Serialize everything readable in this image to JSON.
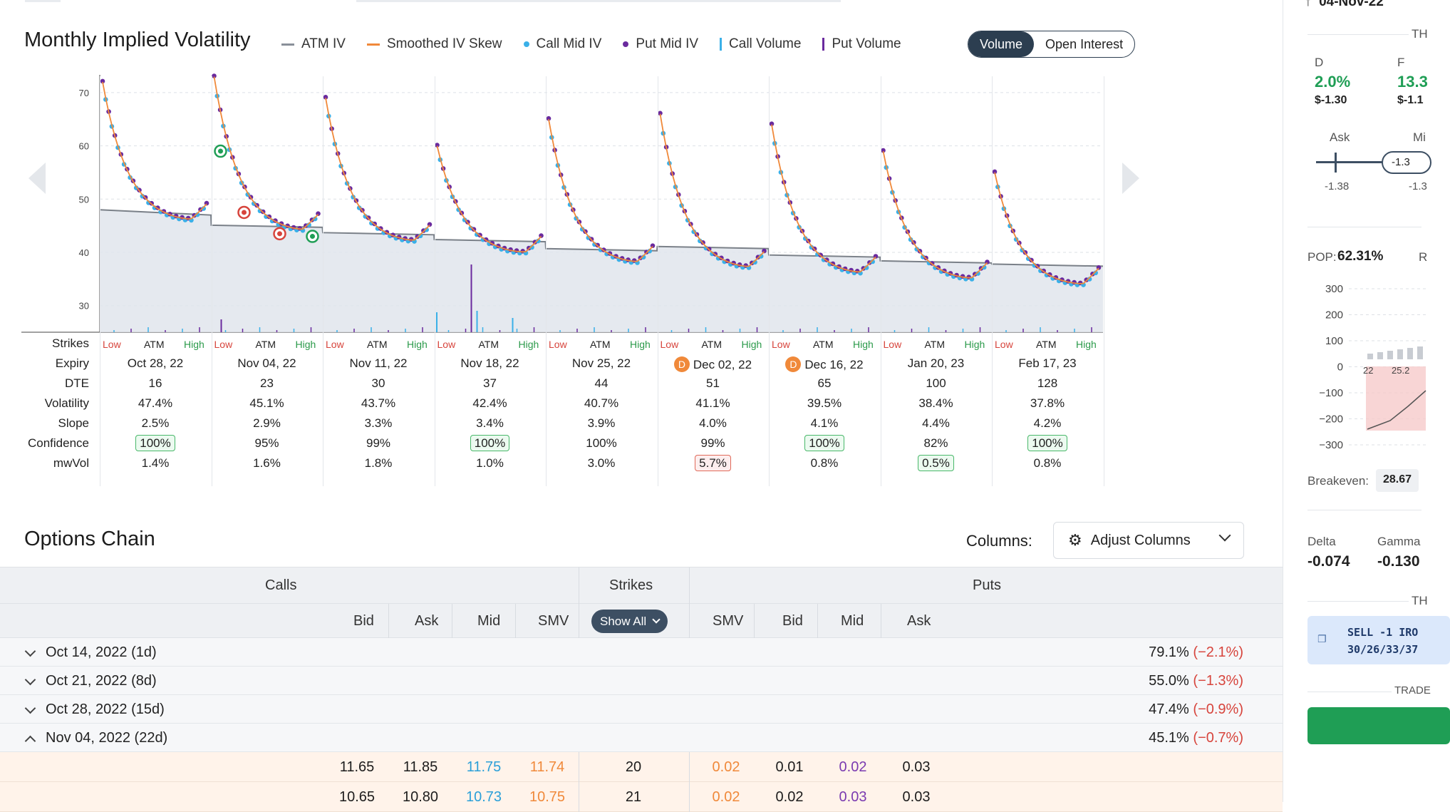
{
  "chart": {
    "title": "Monthly Implied Volatility",
    "legend": [
      {
        "label": "ATM IV",
        "symbol": "line",
        "color": "#8a9099"
      },
      {
        "label": "Smoothed IV Skew",
        "symbol": "line",
        "color": "#f0893a"
      },
      {
        "label": "Call Mid IV",
        "symbol": "dot",
        "color": "#3ab0e8"
      },
      {
        "label": "Put Mid IV",
        "symbol": "dot",
        "color": "#6a2a9e"
      },
      {
        "label": "Call Volume",
        "symbol": "bar",
        "color": "#3ab0e8"
      },
      {
        "label": "Put Volume",
        "symbol": "bar",
        "color": "#6a2a9e"
      }
    ],
    "toggle": {
      "options": [
        "Volume",
        "Open Interest"
      ],
      "active": "Volume"
    }
  },
  "chart_data": {
    "type": "scatter",
    "y_ticks": [
      70,
      60,
      50,
      40,
      30
    ],
    "ylim": [
      25,
      74
    ],
    "atm_iv_by_expiry": [
      47.4,
      45.1,
      43.7,
      42.4,
      40.7,
      41.1,
      39.5,
      38.4,
      37.8
    ],
    "skew_start_iv": [
      72,
      73,
      69,
      60,
      65,
      66,
      64,
      59,
      55
    ],
    "skew_end_iv": [
      46,
      44,
      42,
      40,
      38,
      37,
      36,
      35,
      34
    ],
    "call_volume_spikes": [
      {
        "expiry_index": 3,
        "value": 30
      },
      {
        "expiry_index": 3,
        "value": 20
      },
      {
        "expiry_index": 2,
        "value": 28
      }
    ],
    "put_volume_spikes": [
      {
        "expiry_index": 1,
        "value": 18
      },
      {
        "expiry_index": 3,
        "value": 95
      }
    ]
  },
  "strike_labels": {
    "low": "Low",
    "atm": "ATM",
    "high": "High"
  },
  "info_table": {
    "labels": [
      "Strikes",
      "Expiry",
      "DTE",
      "Volatility",
      "Slope",
      "Confidence",
      "mwVol"
    ],
    "columns": [
      {
        "expiry": "Oct 28, 22",
        "dte": "16",
        "vol": "47.4%",
        "slope": "2.5%",
        "conf": "100%",
        "conf_badge": "green",
        "mwvol": "1.4%",
        "mw_badge": "",
        "dividend": ""
      },
      {
        "expiry": "Nov 04, 22",
        "dte": "23",
        "vol": "45.1%",
        "slope": "2.9%",
        "conf": "95%",
        "conf_badge": "",
        "mwvol": "1.6%",
        "mw_badge": "",
        "dividend": ""
      },
      {
        "expiry": "Nov 11, 22",
        "dte": "30",
        "vol": "43.7%",
        "slope": "3.3%",
        "conf": "99%",
        "conf_badge": "",
        "mwvol": "1.8%",
        "mw_badge": "",
        "dividend": ""
      },
      {
        "expiry": "Nov 18, 22",
        "dte": "37",
        "vol": "42.4%",
        "slope": "3.4%",
        "conf": "100%",
        "conf_badge": "green",
        "mwvol": "1.0%",
        "mw_badge": "",
        "dividend": ""
      },
      {
        "expiry": "Nov 25, 22",
        "dte": "44",
        "vol": "40.7%",
        "slope": "3.9%",
        "conf": "100%",
        "conf_badge": "",
        "mwvol": "3.0%",
        "mw_badge": "",
        "dividend": ""
      },
      {
        "expiry": "Dec 02, 22",
        "dte": "51",
        "vol": "41.1%",
        "slope": "4.0%",
        "conf": "99%",
        "conf_badge": "",
        "mwvol": "5.7%",
        "mw_badge": "red",
        "dividend": "D"
      },
      {
        "expiry": "Dec 16, 22",
        "dte": "65",
        "vol": "39.5%",
        "slope": "4.1%",
        "conf": "100%",
        "conf_badge": "green",
        "mwvol": "0.8%",
        "mw_badge": "",
        "dividend": "D"
      },
      {
        "expiry": "Jan 20, 23",
        "dte": "100",
        "vol": "38.4%",
        "slope": "4.4%",
        "conf": "82%",
        "conf_badge": "",
        "mwvol": "0.5%",
        "mw_badge": "green",
        "dividend": ""
      },
      {
        "expiry": "Feb 17, 23",
        "dte": "128",
        "vol": "37.8%",
        "slope": "4.2%",
        "conf": "100%",
        "conf_badge": "green",
        "mwvol": "0.8%",
        "mw_badge": "",
        "dividend": ""
      }
    ]
  },
  "options_chain": {
    "title": "Options Chain",
    "columns_label": "Columns:",
    "adjust_label": "Adjust Columns",
    "calls_header": "Calls",
    "strikes_header": "Strikes",
    "puts_header": "Puts",
    "show_all": "Show All",
    "call_cols": [
      "Bid",
      "Ask",
      "Mid",
      "SMV"
    ],
    "put_cols": [
      "SMV",
      "Bid",
      "Mid",
      "Ask"
    ],
    "expirations": [
      {
        "label": "Oct 14, 2022 (1d)",
        "iv": "79.1%",
        "chg": "(−2.1%)",
        "expanded": false
      },
      {
        "label": "Oct 21, 2022 (8d)",
        "iv": "55.0%",
        "chg": "(−1.3%)",
        "expanded": false
      },
      {
        "label": "Oct 28, 2022 (15d)",
        "iv": "47.4%",
        "chg": "(−0.9%)",
        "expanded": false
      },
      {
        "label": "Nov 04, 2022 (22d)",
        "iv": "45.1%",
        "chg": "(−0.7%)",
        "expanded": true
      }
    ],
    "rows": [
      {
        "c_bid": "11.65",
        "c_ask": "11.85",
        "c_mid": "11.75",
        "c_smv": "11.74",
        "strike": "20",
        "p_smv": "0.02",
        "p_bid": "0.01",
        "p_mid": "0.02",
        "p_ask": "0.03"
      },
      {
        "c_bid": "10.65",
        "c_ask": "10.80",
        "c_mid": "10.73",
        "c_smv": "10.75",
        "strike": "21",
        "p_smv": "0.02",
        "p_bid": "0.02",
        "p_mid": "0.03",
        "p_ask": "0.03"
      }
    ]
  },
  "right_panel": {
    "header_date": "04-Nov-22",
    "section_top": "TH",
    "col_d": "D",
    "col_f": "F",
    "d_pct": "2.0%",
    "f_pct": "13.3",
    "d_val": "$-1.30",
    "f_val": "$-1.1",
    "ask_label": "Ask",
    "mid_label": "Mi",
    "ask_value": "-1.38",
    "mid_value": "-1.3",
    "mid_value2": "-1.3",
    "pop_label": "POP:",
    "pop_value": "62.31%",
    "r_label": "R",
    "pnl_ticks": [
      "300",
      "200",
      "100",
      "0",
      "−100",
      "−200",
      "−300"
    ],
    "x_ticks": [
      "22",
      "25.2"
    ],
    "breakeven_label": "Breakeven:",
    "breakeven_value": "28.67",
    "delta_label": "Delta",
    "delta_value": "-0.074",
    "gamma_label": "Gamma",
    "gamma_value": "-0.130",
    "section_mid": "TH",
    "trade_line1": "SELL -1 IRO",
    "trade_line2": "30/26/33/37",
    "trade_section": "TRADE"
  }
}
